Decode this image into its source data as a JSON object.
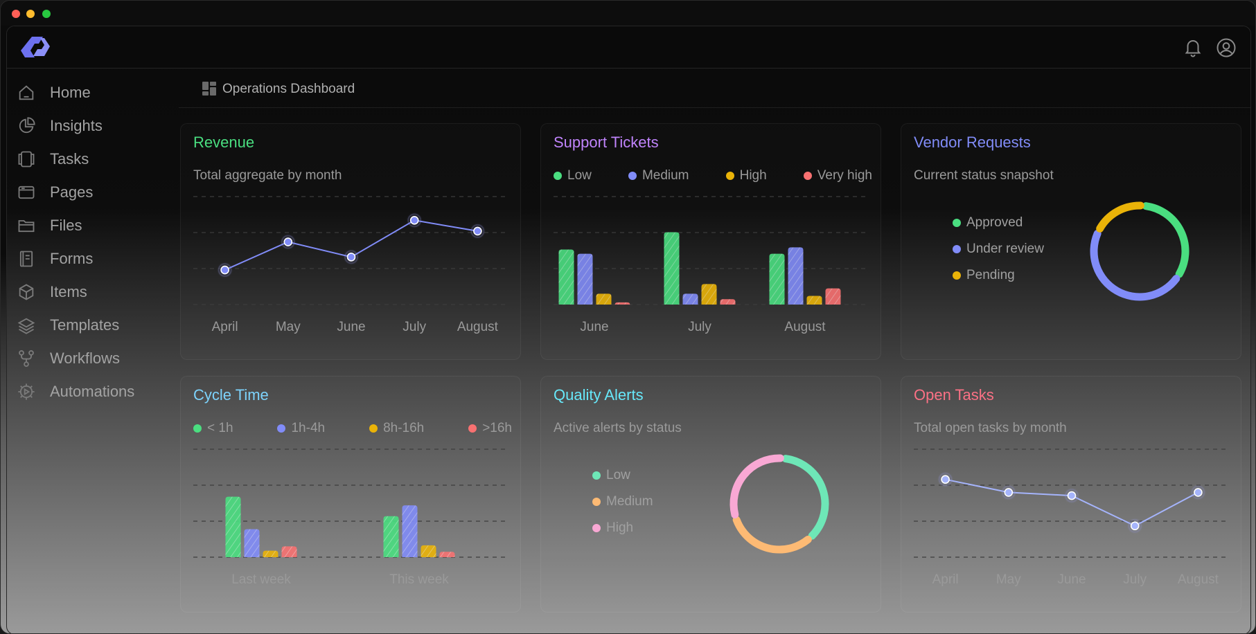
{
  "window": {
    "controls": [
      {
        "name": "close",
        "color": "#ff5f57"
      },
      {
        "name": "minimize",
        "color": "#febc2e"
      },
      {
        "name": "maximize",
        "color": "#28c840"
      }
    ]
  },
  "header": {
    "logo": "logo-icon",
    "notifications": "bell-icon",
    "account": "user-icon"
  },
  "sidebar": {
    "items": [
      {
        "label": "Home",
        "icon": "home-icon"
      },
      {
        "label": "Insights",
        "icon": "pie-chart-icon"
      },
      {
        "label": "Tasks",
        "icon": "tasks-icon"
      },
      {
        "label": "Pages",
        "icon": "pages-icon"
      },
      {
        "label": "Files",
        "icon": "folder-icon"
      },
      {
        "label": "Forms",
        "icon": "forms-icon"
      },
      {
        "label": "Items",
        "icon": "box-icon"
      },
      {
        "label": "Templates",
        "icon": "layers-icon"
      },
      {
        "label": "Workflows",
        "icon": "workflow-icon"
      },
      {
        "label": "Automations",
        "icon": "gear-icon"
      }
    ]
  },
  "breadcrumb": {
    "icon": "dashboard-icon",
    "title": "Operations Dashboard"
  },
  "colors": {
    "green": "#4ade80",
    "indigo": "#818cf8",
    "yellow": "#eab308",
    "red": "#f87171",
    "blue": "#7dd3fc",
    "pink": "#fb7185",
    "purple": "#c084fc"
  },
  "cards": {
    "revenue": {
      "title": "Revenue",
      "subtitle": "Total aggregate by month",
      "title_color": "#4ade80"
    },
    "support": {
      "title": "Support Tickets",
      "title_color": "#c084fc",
      "legend": [
        {
          "label": "Low",
          "color": "#4ade80"
        },
        {
          "label": "Medium",
          "color": "#818cf8"
        },
        {
          "label": "High",
          "color": "#eab308"
        },
        {
          "label": "Very high",
          "color": "#f87171"
        }
      ]
    },
    "vendor": {
      "title": "Vendor Requests",
      "subtitle": "Current status snapshot",
      "title_color": "#818cf8",
      "legend": [
        {
          "label": "Approved",
          "color": "#4ade80"
        },
        {
          "label": "Under review",
          "color": "#818cf8"
        },
        {
          "label": "Pending",
          "color": "#eab308"
        }
      ]
    },
    "cycle": {
      "title": "Cycle Time",
      "title_color": "#7dd3fc",
      "legend": [
        {
          "label": "< 1h",
          "color": "#4ade80"
        },
        {
          "label": "1h-4h",
          "color": "#818cf8"
        },
        {
          "label": "8h-16h",
          "color": "#eab308"
        },
        {
          "label": ">16h",
          "color": "#f87171"
        }
      ]
    },
    "quality": {
      "title": "Quality Alerts",
      "subtitle": "Active alerts by status",
      "title_color": "#67e8f9",
      "legend": [
        {
          "label": "Low",
          "color": "#6ee7b7"
        },
        {
          "label": "Medium",
          "color": "#fdba74"
        },
        {
          "label": "High",
          "color": "#f9a8d4"
        }
      ]
    },
    "open": {
      "title": "Open Tasks",
      "subtitle": "Total open tasks by month",
      "title_color": "#fb7185"
    }
  },
  "chart_data": [
    {
      "id": "revenue",
      "type": "line",
      "categories": [
        "April",
        "May",
        "June",
        "July",
        "August"
      ],
      "values": [
        32,
        58,
        44,
        78,
        68
      ],
      "ylim": [
        0,
        100
      ],
      "grid": true,
      "color": "#818cf8"
    },
    {
      "id": "support",
      "type": "bar",
      "categories": [
        "June",
        "July",
        "August"
      ],
      "series": [
        {
          "name": "Low",
          "color": "#4ade80",
          "values": [
            51,
            67,
            47
          ]
        },
        {
          "name": "Medium",
          "color": "#818cf8",
          "values": [
            47,
            10,
            53
          ]
        },
        {
          "name": "High",
          "color": "#eab308",
          "values": [
            10,
            19,
            8
          ]
        },
        {
          "name": "Very high",
          "color": "#f87171",
          "values": [
            2,
            5,
            15
          ]
        }
      ],
      "ylim": [
        0,
        100
      ],
      "grid": true
    },
    {
      "id": "vendor",
      "type": "pie",
      "donut": true,
      "slices": [
        {
          "name": "Approved",
          "value": 33,
          "color": "#4ade80"
        },
        {
          "name": "Under review",
          "value": 48,
          "color": "#818cf8"
        },
        {
          "name": "Pending",
          "value": 19,
          "color": "#eab308"
        }
      ]
    },
    {
      "id": "cycle",
      "type": "bar",
      "categories": [
        "Last week",
        "This week"
      ],
      "series": [
        {
          "name": "< 1h",
          "color": "#4ade80",
          "values": [
            56,
            38
          ]
        },
        {
          "name": "1h-4h",
          "color": "#818cf8",
          "values": [
            26,
            48
          ]
        },
        {
          "name": "8h-16h",
          "color": "#eab308",
          "values": [
            6,
            11
          ]
        },
        {
          "name": ">16h",
          "color": "#f87171",
          "values": [
            10,
            5
          ]
        }
      ],
      "ylim": [
        0,
        100
      ],
      "grid": true
    },
    {
      "id": "quality",
      "type": "pie",
      "donut": true,
      "slices": [
        {
          "name": "Low",
          "value": 37,
          "color": "#6ee7b7"
        },
        {
          "name": "Medium",
          "value": 32,
          "color": "#fdba74"
        },
        {
          "name": "High",
          "value": 31,
          "color": "#f9a8d4"
        }
      ]
    },
    {
      "id": "open",
      "type": "line",
      "categories": [
        "April",
        "May",
        "June",
        "July",
        "August"
      ],
      "values": [
        72,
        60,
        57,
        29,
        60
      ],
      "ylim": [
        0,
        100
      ],
      "grid": true,
      "color": "#a5b4fc"
    }
  ]
}
